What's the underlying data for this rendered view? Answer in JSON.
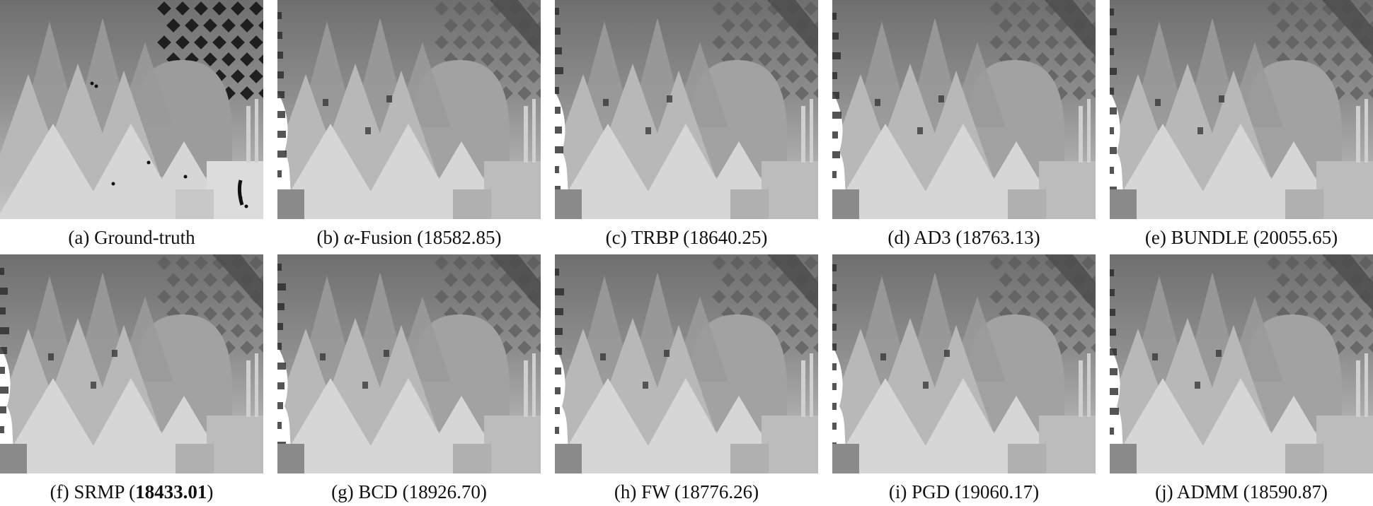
{
  "panels": [
    {
      "tag": "(a)",
      "method_prefix": "",
      "method": "Ground-truth",
      "energy": "",
      "energy_bold": false,
      "variant": "gt"
    },
    {
      "tag": "(b)",
      "method_prefix": "α",
      "method": "-Fusion",
      "energy": "18582.85",
      "energy_bold": false,
      "variant": "est"
    },
    {
      "tag": "(c)",
      "method_prefix": "",
      "method": "TRBP",
      "energy": "18640.25",
      "energy_bold": false,
      "variant": "est"
    },
    {
      "tag": "(d)",
      "method_prefix": "",
      "method": "AD3",
      "energy": "18763.13",
      "energy_bold": false,
      "variant": "est"
    },
    {
      "tag": "(e)",
      "method_prefix": "",
      "method": "BUNDLE",
      "energy": "20055.65",
      "energy_bold": false,
      "variant": "est"
    },
    {
      "tag": "(f)",
      "method_prefix": "",
      "method": "SRMP",
      "energy": "18433.01",
      "energy_bold": true,
      "variant": "est"
    },
    {
      "tag": "(g)",
      "method_prefix": "",
      "method": "BCD",
      "energy": "18926.70",
      "energy_bold": false,
      "variant": "est"
    },
    {
      "tag": "(h)",
      "method_prefix": "",
      "method": "FW",
      "energy": "18776.26",
      "energy_bold": false,
      "variant": "est"
    },
    {
      "tag": "(i)",
      "method_prefix": "",
      "method": "PGD",
      "energy": "19060.17",
      "energy_bold": false,
      "variant": "est"
    },
    {
      "tag": "(j)",
      "method_prefix": "",
      "method": "ADMM",
      "energy": "18590.87",
      "energy_bold": false,
      "variant": "est"
    }
  ],
  "colors": {
    "background": "#ffffff",
    "text": "#111111"
  }
}
